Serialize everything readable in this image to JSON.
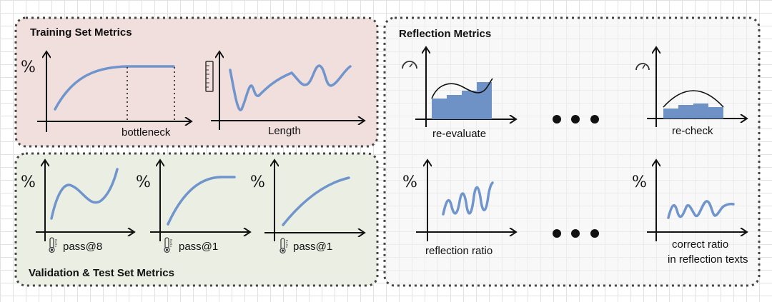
{
  "colors": {
    "training_bg": "#f1dfdd",
    "validation_bg": "#ebeee3",
    "reflection_bg": "#f3f3f3",
    "curve": "#6f95cc",
    "bars": "#6f92c6",
    "border": "#444444"
  },
  "training": {
    "title": "Training Set Metrics",
    "chart1": {
      "y_symbol": "%",
      "x_label": "bottleneck"
    },
    "chart2": {
      "icon": "ruler-icon",
      "x_label": "Length"
    }
  },
  "validation": {
    "title": "Validation & Test Set Metrics",
    "charts": [
      {
        "y_symbol": "%",
        "icon": "thermometer-icon",
        "x_label": "pass@8"
      },
      {
        "y_symbol": "%",
        "icon": "thermometer-icon",
        "x_label": "pass@1"
      },
      {
        "y_symbol": "%",
        "icon": "thermometer-icon",
        "x_label": "pass@1"
      }
    ]
  },
  "reflection": {
    "title": "Reflection Metrics",
    "top": [
      {
        "icon": "gauge-icon",
        "x_label": "re-evaluate"
      },
      {
        "icon": "gauge-icon",
        "x_label": "re-check"
      }
    ],
    "bottom": [
      {
        "y_symbol": "%",
        "x_label": "reflection ratio"
      },
      {
        "y_symbol": "%",
        "x_label_line1": "correct ratio",
        "x_label_line2": "in reflection texts"
      }
    ]
  }
}
